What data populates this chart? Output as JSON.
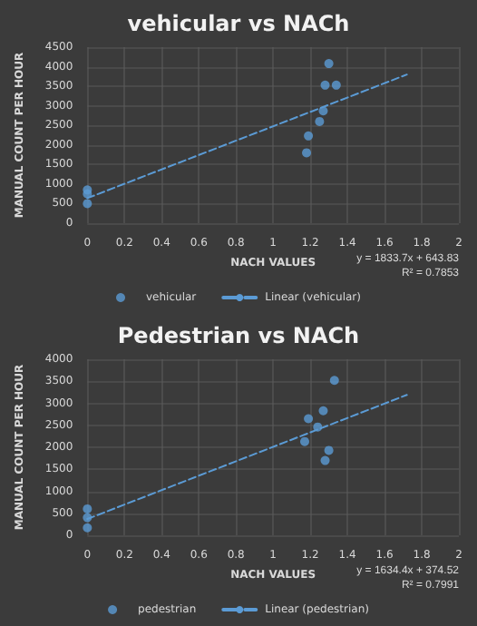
{
  "chart_data": [
    {
      "type": "scatter",
      "title": "vehicular vs NACh",
      "xlabel": "NACH VALUES",
      "ylabel": "MANUAL COUNT PER HOUR",
      "xlim": [
        0,
        2
      ],
      "xticks": [
        0,
        0.2,
        0.4,
        0.6,
        0.8,
        1,
        1.2,
        1.4,
        1.6,
        1.8,
        2
      ],
      "ylim": [
        0,
        4500
      ],
      "yticks": [
        0,
        500,
        1000,
        1500,
        2000,
        2500,
        3000,
        3500,
        4000,
        4500
      ],
      "grid": true,
      "legend": "bottom",
      "annotations": [
        "y = 1833.7x + 643.83",
        "R² = 0.7853"
      ],
      "series": [
        {
          "name": "vehicular",
          "marker": "circle",
          "color": "#5b9bd5",
          "x": [
            0,
            0,
            0,
            1.18,
            1.19,
            1.25,
            1.27,
            1.28,
            1.3,
            1.34
          ],
          "values": [
            500,
            750,
            850,
            1800,
            2230,
            2600,
            2870,
            3530,
            4080,
            3530
          ]
        },
        {
          "name": "Linear (vehicular)",
          "type": "line",
          "marker": "none",
          "line_style": "dashed",
          "color": "#5b9bd5",
          "x": [
            0,
            1.72
          ],
          "values": [
            640,
            3800
          ]
        }
      ]
    },
    {
      "type": "scatter",
      "title": "Pedestrian vs NACh",
      "xlabel": "NACH VALUES",
      "ylabel": "MANUAL COUNT PER HOUR",
      "xlim": [
        0,
        2
      ],
      "xticks": [
        0,
        0.2,
        0.4,
        0.6,
        0.8,
        1,
        1.2,
        1.4,
        1.6,
        1.8,
        2
      ],
      "ylim": [
        0,
        4000
      ],
      "yticks": [
        0,
        500,
        1000,
        1500,
        2000,
        2500,
        3000,
        3500,
        4000
      ],
      "grid": true,
      "legend": "bottom",
      "annotations": [
        "y = 1634.4x + 374.52",
        "R² = 0.7991"
      ],
      "series": [
        {
          "name": "pedestrian",
          "marker": "circle",
          "color": "#5b9bd5",
          "x": [
            0,
            0,
            0,
            1.17,
            1.19,
            1.24,
            1.27,
            1.28,
            1.3,
            1.33
          ],
          "values": [
            170,
            400,
            600,
            2130,
            2650,
            2460,
            2830,
            1700,
            1930,
            3520
          ]
        },
        {
          "name": "Linear (pedestrian)",
          "type": "line",
          "marker": "none",
          "line_style": "dashed",
          "color": "#5b9bd5",
          "x": [
            0,
            1.72
          ],
          "values": [
            370,
            3190
          ]
        }
      ]
    }
  ]
}
